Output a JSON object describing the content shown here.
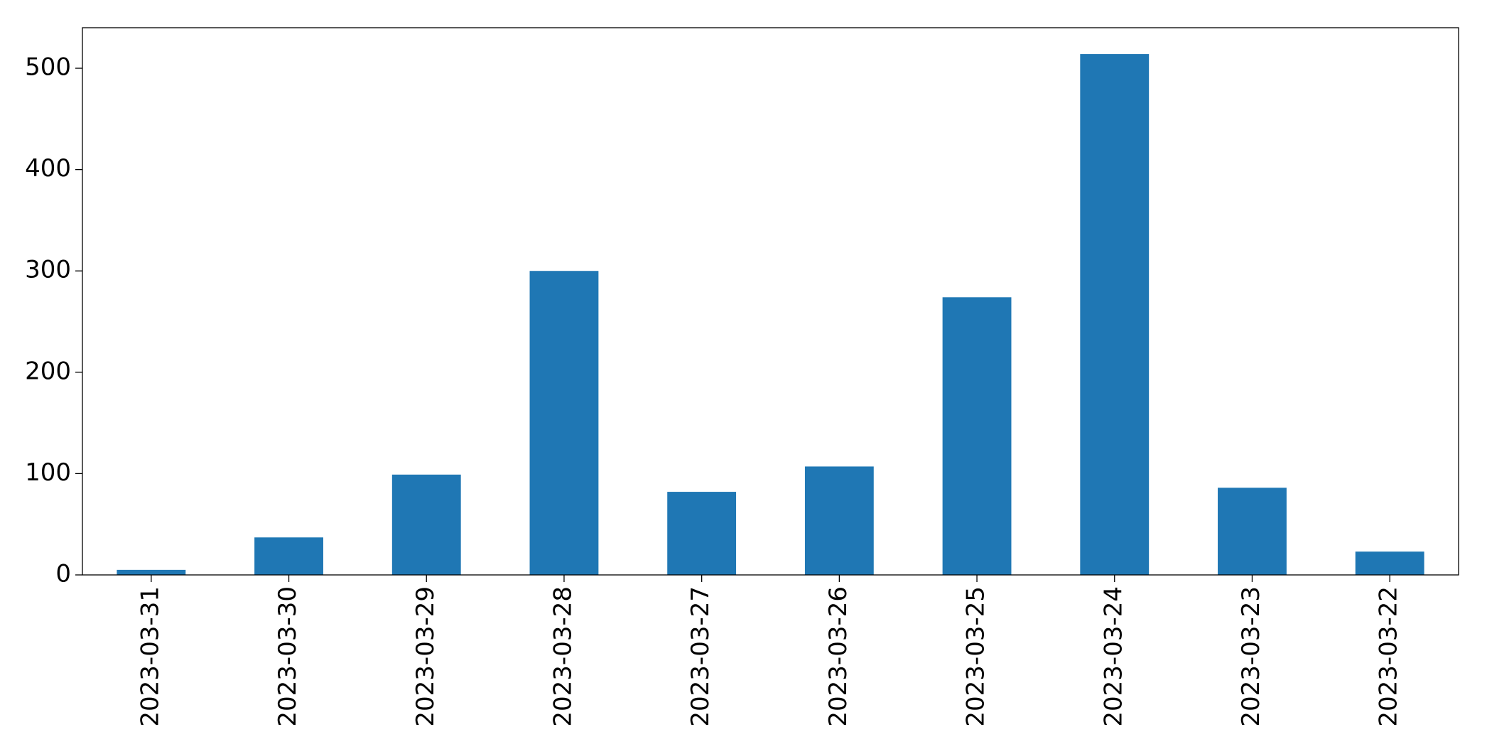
{
  "chart_data": {
    "type": "bar",
    "categories": [
      "2023-03-31",
      "2023-03-30",
      "2023-03-29",
      "2023-03-28",
      "2023-03-27",
      "2023-03-26",
      "2023-03-25",
      "2023-03-24",
      "2023-03-23",
      "2023-03-22"
    ],
    "values": [
      5,
      37,
      99,
      300,
      82,
      107,
      274,
      514,
      86,
      23
    ],
    "color": "#1f77b4",
    "ylim": [
      0,
      540
    ],
    "yticks": [
      0,
      100,
      200,
      300,
      400,
      500
    ],
    "grid": false
  }
}
